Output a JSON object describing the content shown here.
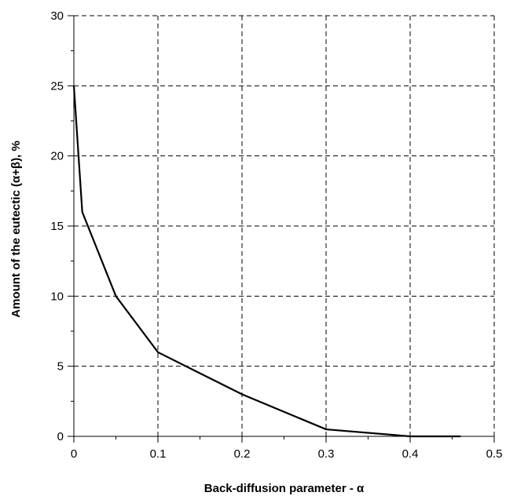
{
  "chart_data": {
    "type": "line",
    "xlabel": "Back-diffusion parameter - α",
    "ylabel": "Amount of the eutectic (α+β), %",
    "xlim": [
      0,
      0.5
    ],
    "ylim": [
      0,
      30
    ],
    "x_ticks": [
      0,
      0.1,
      0.2,
      0.3,
      0.4,
      0.5
    ],
    "x_tick_labels": [
      "0",
      "0.1",
      "0.2",
      "0.3",
      "0.4",
      "0.5"
    ],
    "y_ticks": [
      0,
      5,
      10,
      15,
      20,
      25,
      30
    ],
    "y_tick_labels": [
      "0",
      "5",
      "10",
      "15",
      "20",
      "25",
      "30"
    ],
    "grid": true,
    "grid_style": "dashed",
    "line_color": "#000000",
    "series": [
      {
        "x": [
          0,
          0.01,
          0.05,
          0.1,
          0.2,
          0.3,
          0.4,
          0.46
        ],
        "y": [
          25,
          16,
          10,
          6,
          3,
          0.5,
          0,
          0
        ]
      }
    ]
  }
}
